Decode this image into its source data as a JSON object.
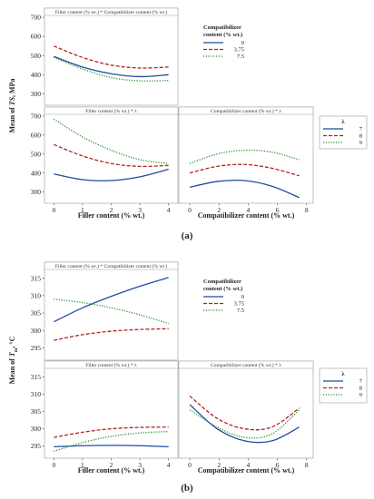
{
  "figure": {
    "labels": {
      "a": "(a)",
      "b": "(b)"
    }
  },
  "chart_data": [
    {
      "id": "a",
      "type": "line",
      "title": "Mean of TS, MPa",
      "y_label_main": "Mean of ",
      "y_label_italic": "TS",
      "y_label_tail": ", MPa",
      "ylim": [
        250,
        700
      ],
      "y_ticks": [
        300,
        400,
        500,
        600,
        700
      ],
      "legend_comp": {
        "title_line1": "Compatibilizer",
        "title_line2": "content (% wt.)",
        "items": [
          {
            "name": "0",
            "color": "#1f4e9a",
            "dash": "solid"
          },
          {
            "name": "3.75",
            "color": "#b22222",
            "dash": "dashed"
          },
          {
            "name": "7.5",
            "color": "#2e8b2e",
            "dash": "dotted"
          }
        ]
      },
      "legend_lambda": {
        "title": "λ",
        "items": [
          {
            "name": "7",
            "color": "#1f4e9a",
            "dash": "solid"
          },
          {
            "name": "8",
            "color": "#b22222",
            "dash": "dashed"
          },
          {
            "name": "9",
            "color": "#2e8b2e",
            "dash": "dotted"
          }
        ]
      },
      "panels": [
        {
          "title": "Filler content (% wt.) * Compatibilizer content (% wt.)",
          "x_name": "Filler content (% wt.)",
          "xlim": [
            -0.2,
            4.2
          ],
          "x_ticks": [],
          "series": [
            {
              "name": "0",
              "x": [
                0,
                1,
                2,
                3,
                4
              ],
              "y": [
                495,
                440,
                405,
                390,
                400
              ]
            },
            {
              "name": "3.75",
              "x": [
                0,
                1,
                2,
                3,
                4
              ],
              "y": [
                550,
                490,
                450,
                435,
                440
              ]
            },
            {
              "name": "7.5",
              "x": [
                0,
                1,
                2,
                3,
                4
              ],
              "y": [
                490,
                430,
                385,
                368,
                370
              ]
            }
          ]
        },
        {
          "title": "Filler content (% wt.) * λ",
          "x_name": "Filler content (% wt.)",
          "xlim": [
            -0.2,
            4.2
          ],
          "x_ticks": [
            0,
            1,
            2,
            3,
            4
          ],
          "series": [
            {
              "name": "7",
              "x": [
                0,
                1,
                2,
                3,
                4
              ],
              "y": [
                395,
                365,
                360,
                380,
                420
              ]
            },
            {
              "name": "8",
              "x": [
                0,
                1,
                2,
                3,
                4
              ],
              "y": [
                550,
                490,
                450,
                435,
                440
              ]
            },
            {
              "name": "9",
              "x": [
                0,
                1,
                2,
                3,
                4
              ],
              "y": [
                685,
                590,
                520,
                470,
                450
              ]
            }
          ]
        },
        {
          "title": "Compatibilizer content (% wt.) * λ",
          "x_name": "Compatibilizer content (% wt.)",
          "xlim": [
            -0.5,
            8.2
          ],
          "x_ticks": [
            0,
            2,
            4,
            6,
            8
          ],
          "series": [
            {
              "name": "7",
              "x": [
                0,
                1.875,
                3.75,
                5.625,
                7.5
              ],
              "y": [
                325,
                355,
                360,
                330,
                270
              ]
            },
            {
              "name": "8",
              "x": [
                0,
                1.875,
                3.75,
                5.625,
                7.5
              ],
              "y": [
                400,
                435,
                445,
                425,
                385
              ]
            },
            {
              "name": "9",
              "x": [
                0,
                1.875,
                3.75,
                5.625,
                7.5
              ],
              "y": [
                450,
                500,
                520,
                510,
                470
              ]
            }
          ]
        }
      ]
    },
    {
      "id": "b",
      "type": "line",
      "title": "Mean of Tm, °C",
      "y_label_main": "Mean of ",
      "y_label_italic": "T",
      "y_label_sub": "m",
      "y_label_tail": ", °C",
      "ylim": [
        292,
        317
      ],
      "y_ticks": [
        295,
        300,
        305,
        310,
        315
      ],
      "legend_comp": {
        "title_line1": "Compatibilizer",
        "title_line2": "content (% wt.)",
        "items": [
          {
            "name": "0",
            "color": "#1f4e9a",
            "dash": "solid"
          },
          {
            "name": "3.75",
            "color": "#b22222",
            "dash": "dashed"
          },
          {
            "name": "7.5",
            "color": "#2e8b2e",
            "dash": "dotted"
          }
        ]
      },
      "legend_lambda": {
        "title": "λ",
        "items": [
          {
            "name": "7",
            "color": "#1f4e9a",
            "dash": "solid"
          },
          {
            "name": "8",
            "color": "#b22222",
            "dash": "dashed"
          },
          {
            "name": "9",
            "color": "#2e8b2e",
            "dash": "dotted"
          }
        ]
      },
      "panels": [
        {
          "title": "Filler content (% wt.) * Compatibilizer content (% wt.)",
          "x_name": "Filler content (% wt.)",
          "xlim": [
            -0.2,
            4.2
          ],
          "x_ticks": [],
          "series": [
            {
              "name": "0",
              "x": [
                0,
                1,
                2,
                3,
                4
              ],
              "y": [
                302.5,
                306.5,
                309.8,
                312.7,
                315.2
              ]
            },
            {
              "name": "3.75",
              "x": [
                0,
                1,
                2,
                3,
                4
              ],
              "y": [
                297.2,
                298.8,
                299.8,
                300.3,
                300.5
              ]
            },
            {
              "name": "7.5",
              "x": [
                0,
                1,
                2,
                3,
                4
              ],
              "y": [
                309,
                308,
                306.5,
                304.5,
                302
              ]
            }
          ]
        },
        {
          "title": "Filler content (% wt.) * λ",
          "x_name": "Filler content (% wt.)",
          "xlim": [
            -0.2,
            4.2
          ],
          "x_ticks": [
            0,
            1,
            2,
            3,
            4
          ],
          "series": [
            {
              "name": "7",
              "x": [
                0,
                1,
                2,
                3,
                4
              ],
              "y": [
                294.8,
                295.1,
                295.2,
                295.1,
                294.8
              ]
            },
            {
              "name": "8",
              "x": [
                0,
                1,
                2,
                3,
                4
              ],
              "y": [
                297.5,
                299,
                300,
                300.4,
                300.5
              ]
            },
            {
              "name": "9",
              "x": [
                0,
                1,
                2,
                3,
                4
              ],
              "y": [
                293.5,
                296,
                297.8,
                298.8,
                299.2
              ]
            }
          ]
        },
        {
          "title": "Compatibilizer content (% wt.) * λ",
          "x_name": "Compatibilizer content (% wt.)",
          "xlim": [
            -0.5,
            8.2
          ],
          "x_ticks": [
            0,
            2,
            4,
            6,
            8
          ],
          "series": [
            {
              "name": "7",
              "x": [
                0,
                1.875,
                3.75,
                5.625,
                7.5
              ],
              "y": [
                307,
                300,
                296.5,
                296.5,
                300.5
              ]
            },
            {
              "name": "8",
              "x": [
                0,
                1.875,
                3.75,
                5.625,
                7.5
              ],
              "y": [
                309.5,
                303,
                300,
                300.5,
                306
              ]
            },
            {
              "name": "9",
              "x": [
                0,
                1.875,
                3.75,
                5.625,
                7.5
              ],
              "y": [
                305.5,
                300.5,
                297.5,
                298.5,
                305.5
              ]
            }
          ]
        }
      ]
    }
  ]
}
